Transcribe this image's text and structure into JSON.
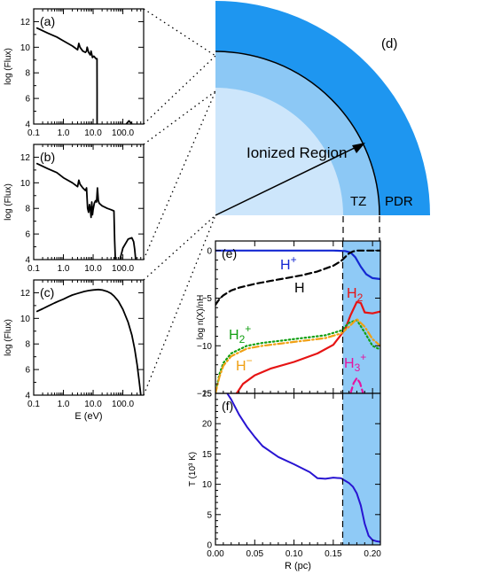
{
  "colors": {
    "pdr": "#1e96f0",
    "tz": "#8cc8f5",
    "ionized": "#cde6fb",
    "tz_band": "#8fcaf6",
    "h_plus": "#1428d2",
    "h": "#000000",
    "h2": "#e61414",
    "h2_plus": "#14a014",
    "h_minus": "#f0a014",
    "h3_plus": "#e614a0",
    "temperature": "#2814d2"
  },
  "panel_d": {
    "label": "(d)",
    "ionized_label": "Ionized Region",
    "tz_label": "TZ",
    "pdr_label": "PDR"
  },
  "chart_data": [
    {
      "id": "a",
      "type": "line",
      "panel_label": "(a)",
      "xlabel": "",
      "ylabel": "log (Flux)",
      "xscale": "log",
      "xlim": [
        0.1,
        500
      ],
      "ylim": [
        4,
        13
      ],
      "xticks": [
        "0.1",
        "1.0",
        "10.0",
        "100.0"
      ],
      "yticks": [
        "4",
        "6",
        "8",
        "10",
        "12"
      ],
      "series": [
        {
          "x": [
            0.13,
            0.3,
            0.6,
            1.0,
            2.0,
            3.0,
            3.3,
            3.6,
            4.5,
            5.5,
            6.0,
            6.3,
            7.0,
            8.0,
            8.5,
            9.5,
            10.5,
            11.5,
            12.5,
            13.5,
            13.55,
            13.6
          ],
          "y": [
            11.5,
            11.1,
            10.8,
            10.5,
            10.1,
            9.8,
            10.3,
            10.0,
            9.7,
            9.6,
            9.7,
            10.0,
            9.6,
            9.4,
            9.7,
            9.2,
            9.3,
            9.2,
            9.1,
            9.1,
            6.5,
            4.0
          ]
        },
        {
          "x": [
            130,
            160,
            200
          ],
          "y": [
            4.0,
            4.25,
            4.0
          ]
        }
      ]
    },
    {
      "id": "b",
      "type": "line",
      "panel_label": "(b)",
      "xlabel": "",
      "ylabel": "log (Flux)",
      "xscale": "log",
      "xlim": [
        0.1,
        500
      ],
      "ylim": [
        4,
        13
      ],
      "xticks": [
        "0.1",
        "1.0",
        "10.0",
        "100.0"
      ],
      "yticks": [
        "4",
        "6",
        "8",
        "10",
        "12"
      ],
      "series": [
        {
          "x": [
            0.13,
            0.3,
            0.6,
            1.0,
            2.0,
            3.0,
            3.3,
            3.6,
            4.5,
            5.5,
            6.0,
            6.5,
            7.0,
            7.5,
            8.0,
            8.5,
            9.0,
            9.5,
            10.0,
            10.5,
            11.0,
            12.0,
            13.0,
            14.0,
            15.0,
            16.0,
            20.0,
            30.0,
            40.0,
            50.0,
            53.0,
            56.0
          ],
          "y": [
            11.5,
            11.1,
            10.8,
            10.4,
            10.0,
            9.7,
            10.2,
            9.9,
            9.6,
            9.4,
            9.6,
            8.0,
            7.7,
            8.3,
            8.0,
            7.3,
            8.5,
            7.5,
            7.9,
            8.2,
            8.4,
            8.6,
            8.5,
            9.6,
            8.6,
            8.4,
            8.2,
            8.0,
            7.9,
            7.8,
            5.5,
            4.0
          ]
        },
        {
          "x": [
            80,
            100,
            150,
            200,
            230,
            250,
            270
          ],
          "y": [
            4.0,
            4.9,
            5.6,
            5.7,
            5.4,
            4.8,
            4.0
          ]
        }
      ]
    },
    {
      "id": "c",
      "type": "line",
      "panel_label": "(c)",
      "xlabel": "E (eV)",
      "ylabel": "log (Flux)",
      "xscale": "log",
      "xlim": [
        0.1,
        500
      ],
      "ylim": [
        4,
        13
      ],
      "xticks": [
        "0.1",
        "1.0",
        "10.0",
        "100.0"
      ],
      "yticks": [
        "4",
        "6",
        "8",
        "10",
        "12"
      ],
      "series": [
        {
          "x": [
            0.13,
            0.2,
            0.3,
            0.5,
            0.7,
            1.0,
            1.5,
            2.0,
            3.0,
            5.0,
            7.0,
            10.0,
            15.0,
            20.0,
            30.0,
            40.0,
            50.0,
            70.0,
            100.0,
            150.0,
            200.0,
            250.0,
            300.0,
            350.0,
            400.0
          ],
          "y": [
            10.55,
            10.75,
            10.95,
            11.2,
            11.35,
            11.5,
            11.7,
            11.82,
            11.95,
            12.1,
            12.17,
            12.22,
            12.25,
            12.22,
            12.1,
            11.95,
            11.75,
            11.35,
            10.7,
            9.7,
            8.7,
            7.6,
            6.4,
            5.2,
            4.0
          ]
        }
      ]
    },
    {
      "id": "e",
      "type": "line",
      "panel_label": "(e)",
      "xlabel": "",
      "ylabel": "log n(X)/nH",
      "xlim": [
        0.0,
        0.21
      ],
      "ylim": [
        -15,
        1
      ],
      "xticks": [
        "0.00",
        "0.05",
        "0.10",
        "0.15",
        "0.20"
      ],
      "yticks": [
        "-15",
        "-10",
        "-5",
        "0"
      ],
      "shaded_region": [
        0.162,
        0.21
      ],
      "boundary": 0.162,
      "series": [
        {
          "name": "H+",
          "style": "solid",
          "color_key": "h_plus",
          "x": [
            0.0,
            0.05,
            0.1,
            0.15,
            0.165,
            0.172,
            0.178,
            0.185,
            0.192,
            0.2,
            0.21
          ],
          "y": [
            0.0,
            0.0,
            0.0,
            0.0,
            -0.05,
            -0.2,
            -0.7,
            -1.7,
            -2.5,
            -2.9,
            -3.0
          ]
        },
        {
          "name": "H",
          "style": "dashed",
          "color_key": "h",
          "x": [
            0.0,
            0.005,
            0.01,
            0.02,
            0.03,
            0.05,
            0.07,
            0.09,
            0.11,
            0.13,
            0.15,
            0.16,
            0.165,
            0.17,
            0.175,
            0.18,
            0.19,
            0.21
          ],
          "y": [
            -5.7,
            -5.1,
            -4.7,
            -4.2,
            -3.9,
            -3.5,
            -3.2,
            -2.9,
            -2.6,
            -2.2,
            -1.6,
            -1.1,
            -0.7,
            -0.3,
            -0.1,
            0.0,
            0.0,
            0.0
          ]
        },
        {
          "name": "H2",
          "style": "solid",
          "color_key": "h2",
          "x": [
            0.027,
            0.035,
            0.05,
            0.07,
            0.1,
            0.13,
            0.15,
            0.165,
            0.172,
            0.18,
            0.185,
            0.19,
            0.2,
            0.21
          ],
          "y": [
            -15.0,
            -14.0,
            -13.1,
            -12.4,
            -11.7,
            -10.8,
            -9.9,
            -8.3,
            -6.8,
            -5.4,
            -5.5,
            -6.5,
            -6.6,
            -6.4
          ]
        },
        {
          "name": "H2+",
          "style": "dotted",
          "color_key": "h2_plus",
          "x": [
            0.0,
            0.005,
            0.01,
            0.02,
            0.04,
            0.06,
            0.08,
            0.1,
            0.12,
            0.14,
            0.16,
            0.17,
            0.18,
            0.19,
            0.2,
            0.21
          ],
          "y": [
            -15.0,
            -13.0,
            -11.8,
            -10.8,
            -10.0,
            -9.7,
            -9.5,
            -9.3,
            -9.1,
            -8.9,
            -8.4,
            -7.6,
            -7.3,
            -8.6,
            -10.0,
            -10.4
          ]
        },
        {
          "name": "H-",
          "style": "dashdot",
          "color_key": "h_minus",
          "x": [
            0.0,
            0.005,
            0.01,
            0.02,
            0.04,
            0.06,
            0.08,
            0.1,
            0.12,
            0.14,
            0.16,
            0.17,
            0.18,
            0.19,
            0.2,
            0.21
          ],
          "y": [
            -15.0,
            -13.3,
            -12.1,
            -11.1,
            -10.3,
            -10.0,
            -9.8,
            -9.6,
            -9.4,
            -9.2,
            -8.7,
            -8.0,
            -7.2,
            -8.0,
            -9.3,
            -10.0
          ]
        },
        {
          "name": "H3+",
          "style": "dashed",
          "color_key": "h3_plus",
          "x": [
            0.172,
            0.176,
            0.18,
            0.184,
            0.188
          ],
          "y": [
            -15.0,
            -13.9,
            -13.4,
            -13.9,
            -15.0
          ]
        }
      ],
      "annotations": {
        "h_plus": {
          "base": "H",
          "sup": "+",
          "sub": ""
        },
        "h": {
          "base": "H",
          "sup": "",
          "sub": ""
        },
        "h2": {
          "base": "H",
          "sup": "",
          "sub": "2"
        },
        "h2_plus": {
          "base": "H",
          "sup": "+",
          "sub": "2"
        },
        "h_minus": {
          "base": "H",
          "sup": "−",
          "sub": ""
        },
        "h3_plus": {
          "base": "H",
          "sup": "+",
          "sub": "3"
        }
      }
    },
    {
      "id": "f",
      "type": "line",
      "panel_label": "(f)",
      "xlabel": "R (pc)",
      "ylabel": "T (10³ K)",
      "xlim": [
        0.0,
        0.21
      ],
      "ylim": [
        0,
        25
      ],
      "xticks": [
        "0.00",
        "0.05",
        "0.10",
        "0.15",
        "0.20"
      ],
      "yticks": [
        "0",
        "5",
        "10",
        "15",
        "20",
        "25"
      ],
      "shaded_region": [
        0.162,
        0.21
      ],
      "boundary": 0.162,
      "series": [
        {
          "name": "T",
          "style": "solid",
          "color_key": "temperature",
          "x": [
            0.015,
            0.02,
            0.03,
            0.04,
            0.05,
            0.06,
            0.08,
            0.1,
            0.12,
            0.13,
            0.14,
            0.15,
            0.16,
            0.165,
            0.17,
            0.175,
            0.18,
            0.185,
            0.19,
            0.195,
            0.2,
            0.205,
            0.21
          ],
          "y": [
            25.0,
            24.0,
            21.5,
            19.5,
            17.8,
            16.3,
            14.5,
            13.3,
            12.0,
            11.0,
            10.9,
            11.1,
            11.0,
            10.6,
            10.2,
            9.6,
            8.5,
            6.5,
            3.5,
            1.5,
            0.8,
            0.6,
            0.5
          ]
        }
      ]
    }
  ]
}
